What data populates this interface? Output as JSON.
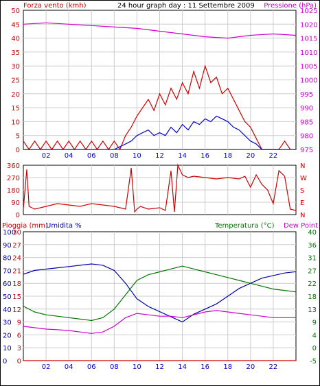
{
  "title": "24 hour graph day : 11 Settembre 2009",
  "colors": {
    "wind": "#cc0000",
    "gust": "#0000cc",
    "pressure": "#cc00cc",
    "direction": "#cc0000",
    "rain": "#cc0000",
    "humidity": "#0000aa",
    "temperature": "#007700",
    "dewpoint": "#cc00cc",
    "axis_blue": "#0000cc",
    "grid": "#cccccc"
  },
  "chart_data": [
    {
      "id": "wind-pressure",
      "type": "line",
      "left_label": "Forza vento (kmh)",
      "right_label": "Pressione (hPa)",
      "x_ticks": [
        "02",
        "04",
        "06",
        "08",
        "10",
        "12",
        "14",
        "16",
        "18",
        "20",
        "22"
      ],
      "xlim": [
        0,
        24
      ],
      "y_left_ticks": [
        "0",
        "5",
        "10",
        "15",
        "20",
        "25",
        "30",
        "35",
        "40",
        "45",
        "50"
      ],
      "ylim_left": [
        0,
        50
      ],
      "y_right_ticks": [
        "975",
        "980",
        "985",
        "990",
        "995",
        "1000",
        "1005",
        "1010",
        "1015",
        "1020",
        "1025"
      ],
      "ylim_right": [
        975,
        1025
      ],
      "series": [
        {
          "key": "wind",
          "x": [
            0,
            0.5,
            1,
            1.5,
            2,
            2.5,
            3,
            3.5,
            4,
            4.5,
            5,
            5.5,
            6,
            6.5,
            7,
            7.5,
            8,
            8.5,
            9,
            9.5,
            10,
            10.5,
            11,
            11.5,
            12,
            12.5,
            13,
            13.5,
            14,
            14.5,
            15,
            15.5,
            16,
            16.5,
            17,
            17.5,
            18,
            18.5,
            19,
            19.5,
            20,
            20.5,
            21,
            21.5,
            22,
            22.5,
            23,
            23.5
          ],
          "values": [
            3,
            0,
            3,
            0,
            3,
            0,
            3,
            0,
            3,
            0,
            3,
            0,
            3,
            0,
            3,
            0,
            3,
            0,
            5,
            8,
            12,
            15,
            18,
            14,
            20,
            16,
            22,
            18,
            24,
            20,
            28,
            22,
            30,
            24,
            26,
            20,
            22,
            18,
            14,
            10,
            8,
            4,
            0,
            0,
            0,
            0,
            3,
            0
          ]
        },
        {
          "key": "gust",
          "x": [
            0,
            1,
            2,
            3,
            4,
            5,
            6,
            7,
            8,
            8.5,
            9,
            9.5,
            10,
            10.5,
            11,
            11.5,
            12,
            12.5,
            13,
            13.5,
            14,
            14.5,
            15,
            15.5,
            16,
            16.5,
            17,
            17.5,
            18,
            18.5,
            19,
            19.5,
            20,
            20.5,
            21,
            22,
            23,
            24
          ],
          "values": [
            0,
            0,
            0,
            0,
            0,
            0,
            0,
            0,
            0,
            1,
            2,
            3,
            5,
            6,
            7,
            5,
            6,
            5,
            8,
            6,
            9,
            7,
            10,
            9,
            11,
            10,
            12,
            11,
            10,
            8,
            7,
            5,
            3,
            2,
            0,
            0,
            0,
            0
          ]
        },
        {
          "key": "pressure",
          "x": [
            0,
            2,
            4,
            6,
            8,
            10,
            12,
            14,
            16,
            18,
            20,
            22,
            24
          ],
          "values": [
            1020,
            1020.5,
            1020,
            1019.5,
            1019,
            1018.5,
            1017.5,
            1016.5,
            1015.5,
            1015,
            1016,
            1016.5,
            1016
          ]
        }
      ]
    },
    {
      "id": "direction",
      "type": "line",
      "left_ticks": [
        "0",
        "90",
        "180",
        "270",
        "360"
      ],
      "ylim": [
        0,
        360
      ],
      "right_ticks": [
        "N",
        "E",
        "S",
        "W",
        "N"
      ],
      "x_ticks": [],
      "xlim": [
        0,
        24
      ],
      "series": [
        {
          "key": "direction",
          "x": [
            0,
            0.3,
            0.5,
            1,
            2,
            3,
            4,
            5,
            6,
            7,
            8,
            9,
            9.5,
            9.8,
            10,
            10.3,
            11,
            12,
            12.5,
            13,
            13.3,
            13.6,
            14,
            14.5,
            15,
            16,
            17,
            18,
            19,
            19.5,
            20,
            20.5,
            21,
            21.5,
            22,
            22.5,
            23,
            23.5,
            24
          ],
          "values": [
            40,
            330,
            60,
            40,
            60,
            80,
            70,
            60,
            80,
            70,
            60,
            40,
            340,
            20,
            40,
            60,
            40,
            50,
            30,
            320,
            20,
            360,
            290,
            270,
            280,
            270,
            260,
            270,
            260,
            280,
            200,
            290,
            220,
            180,
            80,
            320,
            280,
            40,
            30
          ]
        }
      ]
    },
    {
      "id": "weather",
      "type": "line",
      "left_label_1": "Pioggia (mm)",
      "left_label_2": "Umidita %",
      "right_label_1": "Temperatura (°C)",
      "right_label_2": "Dew Point",
      "x_ticks": [
        "02",
        "04",
        "06",
        "08",
        "10",
        "12",
        "14",
        "16",
        "18",
        "20",
        "22"
      ],
      "xlim": [
        0,
        24
      ],
      "humidity_ticks": [
        "0",
        "10",
        "20",
        "30",
        "40",
        "50",
        "60",
        "70",
        "80",
        "90",
        "100"
      ],
      "rain_ticks": [
        "0",
        "3",
        "6",
        "9",
        "12",
        "15",
        "18",
        "21",
        "24",
        "27",
        "30"
      ],
      "temp_ticks": [
        "-5",
        "0",
        "4",
        "9",
        "13",
        "18",
        "22",
        "27",
        "31",
        "36",
        "40"
      ],
      "ylim_humidity": [
        0,
        100
      ],
      "ylim_temp": [
        -5,
        40
      ],
      "series": [
        {
          "key": "humidity",
          "x": [
            0,
            1,
            2,
            3,
            4,
            5,
            6,
            7,
            8,
            9,
            10,
            11,
            12,
            13,
            14,
            15,
            16,
            17,
            18,
            19,
            20,
            21,
            22,
            23,
            24
          ],
          "values": [
            67,
            70,
            71,
            72,
            73,
            74,
            75,
            74,
            70,
            60,
            48,
            42,
            38,
            34,
            30,
            36,
            40,
            44,
            50,
            56,
            60,
            64,
            66,
            68,
            69
          ]
        },
        {
          "key": "temperature",
          "x": [
            0,
            1,
            2,
            3,
            4,
            5,
            6,
            7,
            8,
            9,
            10,
            11,
            12,
            13,
            14,
            15,
            16,
            17,
            18,
            19,
            20,
            21,
            22,
            23,
            24
          ],
          "values": [
            14,
            12,
            11,
            10.5,
            10,
            9.5,
            9,
            10,
            13,
            18,
            23,
            25,
            26,
            27,
            28,
            27,
            26,
            25,
            24,
            23,
            22,
            21,
            20,
            19.5,
            19
          ]
        },
        {
          "key": "dewpoint",
          "x": [
            0,
            1,
            2,
            3,
            4,
            5,
            6,
            7,
            8,
            9,
            10,
            11,
            12,
            13,
            14,
            15,
            16,
            17,
            18,
            19,
            20,
            21,
            22,
            23,
            24
          ],
          "values": [
            7,
            6.5,
            6,
            5.8,
            5.5,
            5,
            4.5,
            5,
            7,
            10,
            11.5,
            11,
            10.5,
            10.5,
            10,
            11,
            12,
            12.5,
            12,
            11.5,
            11,
            10.5,
            10,
            10,
            10
          ]
        },
        {
          "key": "rain",
          "x": [
            0,
            24
          ],
          "values": [
            0,
            0
          ]
        }
      ]
    }
  ]
}
